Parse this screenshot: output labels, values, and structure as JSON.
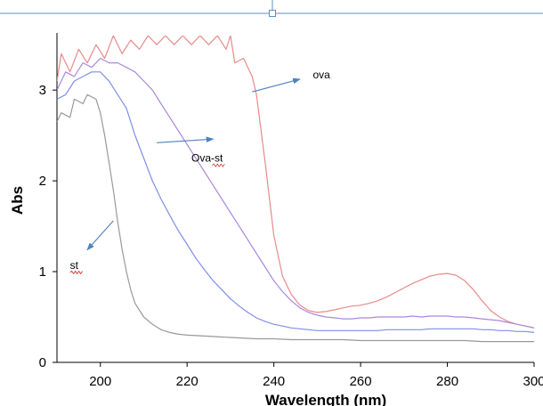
{
  "chart_data": {
    "type": "line",
    "xlabel": "Wavelength (nm)",
    "ylabel": "Abs",
    "xlim": [
      190,
      300
    ],
    "ylim": [
      0,
      3.6
    ],
    "xticks": [
      200,
      220,
      240,
      260,
      280,
      300
    ],
    "yticks": [
      0,
      1,
      2,
      3
    ],
    "grid": false,
    "legend": "none",
    "series": [
      {
        "color": "#e88a8a",
        "x": [
          190,
          191,
          193,
          195,
          197,
          199,
          201,
          203,
          205,
          207,
          209,
          211,
          213,
          215,
          217,
          219,
          221,
          223,
          225,
          227,
          229,
          230,
          231,
          233,
          235,
          236,
          238,
          240,
          242,
          244,
          246,
          248,
          250,
          252,
          254,
          256,
          258,
          260,
          262,
          264,
          266,
          268,
          270,
          272,
          274,
          276,
          278,
          280,
          282,
          284,
          286,
          288,
          290,
          292,
          294,
          296,
          298,
          300
        ],
        "y": [
          3.1,
          3.4,
          3.2,
          3.45,
          3.3,
          3.5,
          3.35,
          3.6,
          3.4,
          3.55,
          3.45,
          3.6,
          3.5,
          3.6,
          3.5,
          3.6,
          3.5,
          3.6,
          3.5,
          3.6,
          3.45,
          3.6,
          3.3,
          3.35,
          3.15,
          2.95,
          2.2,
          1.4,
          0.95,
          0.75,
          0.63,
          0.57,
          0.55,
          0.56,
          0.58,
          0.6,
          0.62,
          0.63,
          0.65,
          0.68,
          0.72,
          0.77,
          0.82,
          0.87,
          0.91,
          0.95,
          0.97,
          0.98,
          0.96,
          0.9,
          0.8,
          0.68,
          0.57,
          0.5,
          0.45,
          0.42,
          0.4,
          0.38
        ]
      },
      {
        "color": "#aa88dd",
        "x": [
          190,
          192,
          194,
          196,
          198,
          200,
          202,
          204,
          206,
          208,
          210,
          212,
          214,
          216,
          218,
          220,
          222,
          224,
          226,
          228,
          230,
          232,
          234,
          236,
          238,
          240,
          242,
          244,
          246,
          248,
          250,
          252,
          254,
          256,
          258,
          260,
          262,
          264,
          266,
          268,
          270,
          272,
          274,
          276,
          278,
          280,
          282,
          284,
          286,
          288,
          290,
          292,
          294,
          296,
          298,
          300
        ],
        "y": [
          3.0,
          3.2,
          3.15,
          3.3,
          3.25,
          3.35,
          3.3,
          3.3,
          3.25,
          3.2,
          3.1,
          3.0,
          2.85,
          2.7,
          2.55,
          2.4,
          2.25,
          2.1,
          1.95,
          1.8,
          1.65,
          1.5,
          1.35,
          1.2,
          1.05,
          0.9,
          0.78,
          0.68,
          0.6,
          0.55,
          0.52,
          0.5,
          0.49,
          0.48,
          0.48,
          0.49,
          0.49,
          0.5,
          0.5,
          0.5,
          0.5,
          0.51,
          0.5,
          0.51,
          0.51,
          0.51,
          0.5,
          0.5,
          0.49,
          0.48,
          0.47,
          0.46,
          0.44,
          0.42,
          0.4,
          0.38
        ]
      },
      {
        "color": "#7f8fe8",
        "x": [
          190,
          192,
          194,
          196,
          198,
          200,
          202,
          204,
          206,
          208,
          210,
          212,
          214,
          216,
          218,
          220,
          222,
          224,
          226,
          228,
          230,
          232,
          234,
          236,
          238,
          240,
          242,
          244,
          246,
          248,
          250,
          252,
          254,
          256,
          258,
          260,
          262,
          264,
          266,
          268,
          270,
          272,
          274,
          276,
          278,
          280,
          282,
          284,
          286,
          288,
          290,
          292,
          294,
          296,
          298,
          300
        ],
        "y": [
          2.9,
          2.95,
          3.1,
          3.15,
          3.2,
          3.2,
          3.1,
          2.95,
          2.8,
          2.5,
          2.25,
          2.0,
          1.8,
          1.62,
          1.45,
          1.3,
          1.15,
          1.02,
          0.9,
          0.8,
          0.7,
          0.62,
          0.55,
          0.49,
          0.45,
          0.42,
          0.4,
          0.38,
          0.37,
          0.36,
          0.35,
          0.35,
          0.35,
          0.35,
          0.35,
          0.35,
          0.35,
          0.35,
          0.36,
          0.36,
          0.36,
          0.36,
          0.36,
          0.37,
          0.37,
          0.37,
          0.37,
          0.37,
          0.37,
          0.36,
          0.36,
          0.35,
          0.35,
          0.34,
          0.34,
          0.33
        ]
      },
      {
        "color": "#999999",
        "x": [
          190,
          191,
          193,
          194,
          196,
          197,
          199,
          200,
          201,
          202,
          203,
          204,
          205,
          206,
          207,
          208,
          210,
          212,
          214,
          216,
          218,
          220,
          224,
          228,
          232,
          236,
          240,
          244,
          248,
          252,
          256,
          260,
          264,
          268,
          272,
          276,
          280,
          284,
          288,
          292,
          296,
          300
        ],
        "y": [
          2.65,
          2.75,
          2.7,
          2.9,
          2.85,
          2.95,
          2.9,
          2.75,
          2.5,
          2.2,
          1.9,
          1.55,
          1.25,
          1.0,
          0.8,
          0.65,
          0.5,
          0.42,
          0.36,
          0.33,
          0.31,
          0.3,
          0.29,
          0.28,
          0.27,
          0.26,
          0.26,
          0.25,
          0.25,
          0.25,
          0.25,
          0.24,
          0.24,
          0.24,
          0.24,
          0.24,
          0.24,
          0.24,
          0.23,
          0.23,
          0.23,
          0.23
        ]
      }
    ],
    "annotations": [
      {
        "text": "ova",
        "x": 249,
        "y": 3.13
      },
      {
        "text": "Ova-st",
        "x": 221,
        "y": 2.21
      },
      {
        "text": "st",
        "x": 193,
        "y": 1.03
      }
    ],
    "arrows": [
      {
        "from": [
          235,
          2.98
        ],
        "to": [
          246,
          3.12
        ]
      },
      {
        "from": [
          213,
          2.42
        ],
        "to": [
          226,
          2.46
        ]
      },
      {
        "from": [
          203,
          1.56
        ],
        "to": [
          197,
          1.24
        ]
      }
    ]
  }
}
